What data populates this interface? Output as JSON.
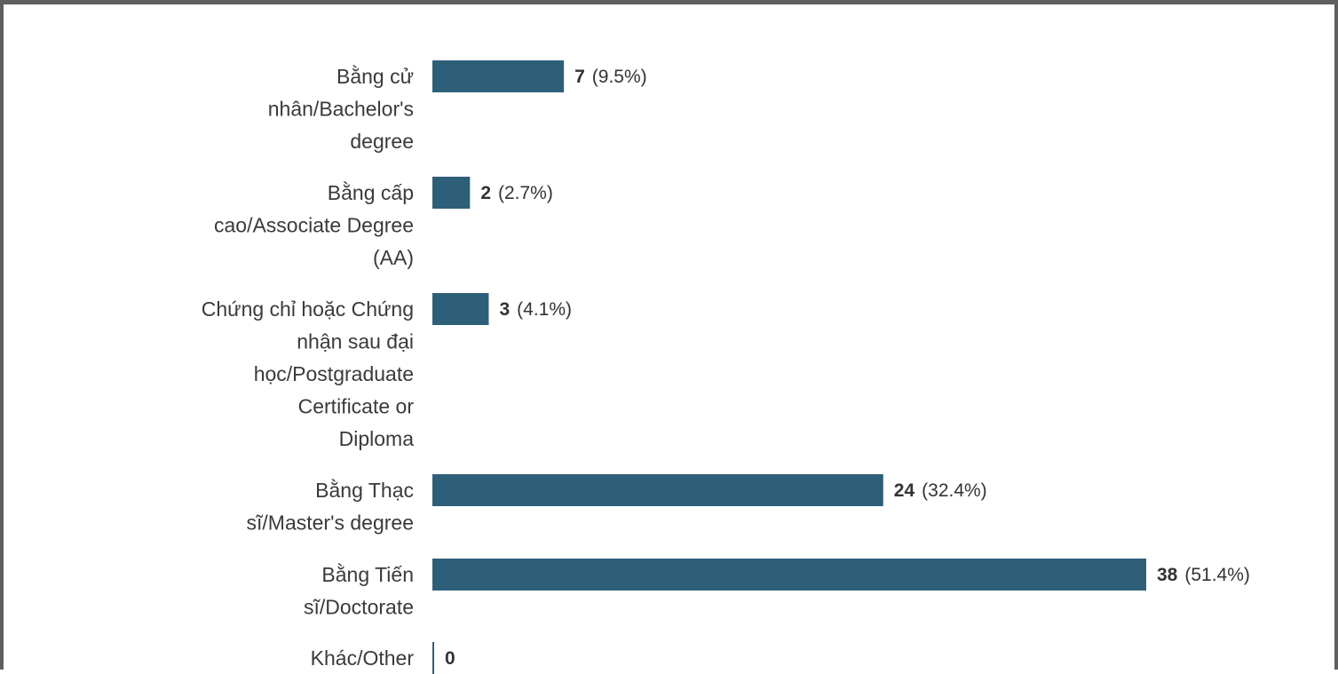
{
  "chart_data": {
    "type": "bar",
    "orientation": "horizontal",
    "bar_color": "#2e5f78",
    "categories": [
      "Bằng cử nhân/Bachelor's degree",
      "Bằng cấp cao/Associate Degree (AA)",
      "Chứng chỉ hoặc Chứng nhận sau đại học/Postgraduate Certificate or Diploma",
      "Bằng Thạc sĩ/Master's degree",
      "Bằng Tiến sĩ/Doctorate",
      "Khác/Other"
    ],
    "category_lines": [
      [
        "Bằng cử",
        "nhân/Bachelor's",
        "degree"
      ],
      [
        "Bằng cấp",
        "cao/Associate Degree",
        "(AA)"
      ],
      [
        "Chứng chỉ hoặc Chứng",
        "nhận sau đại",
        "học/Postgraduate",
        "Certificate or",
        "Diploma"
      ],
      [
        "Bằng Thạc",
        "sĩ/Master's degree"
      ],
      [
        "Bằng Tiến",
        "sĩ/Doctorate"
      ],
      [
        "Khác/Other"
      ]
    ],
    "values": [
      7,
      2,
      3,
      24,
      38,
      0
    ],
    "percent_labels": [
      "(9.5%)",
      "(2.7%)",
      "(4.1%)",
      "(32.4%)",
      "(51.4%)",
      ""
    ],
    "xlim": [
      0,
      38
    ]
  }
}
